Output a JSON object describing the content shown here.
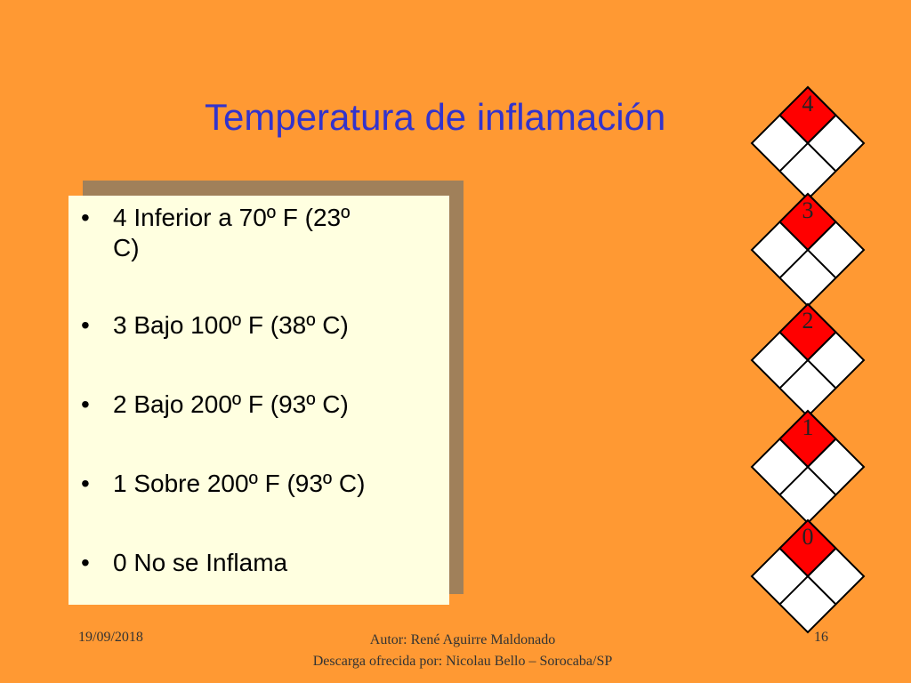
{
  "slide": {
    "title": "Temperatura de inflamación",
    "bullets": [
      {
        "line1": "4 Inferior a 70º F (23º",
        "line2": "C)"
      },
      {
        "line1": "3 Bajo 100º F (38º C)",
        "line2": ""
      },
      {
        "line1": "2 Bajo 200º F (93º C)",
        "line2": ""
      },
      {
        "line1": "1 Sobre 200º F (93º C)",
        "line2": ""
      },
      {
        "line1": "0 No se Inflama",
        "line2": ""
      }
    ],
    "bullet_char": "•"
  },
  "hazard_diamonds": [
    {
      "number": "4",
      "icon": "nfpa-diamond-icon"
    },
    {
      "number": "3",
      "icon": "nfpa-diamond-icon"
    },
    {
      "number": "2",
      "icon": "nfpa-diamond-icon"
    },
    {
      "number": "1",
      "icon": "nfpa-diamond-icon"
    },
    {
      "number": "0",
      "icon": "nfpa-diamond-icon"
    }
  ],
  "footer": {
    "date": "19/09/2018",
    "author_line1": "Autor: René Aguirre Maldonado",
    "author_line2": "Descarga ofrecida por: Nicolau Bello – Sorocaba/SP",
    "page_number": "16"
  },
  "colors": {
    "background": "#FF9933",
    "title": "#3333CC",
    "box_front": "#FFFFE0",
    "box_shadow": "#A0805A",
    "diamond_red": "#FF0000"
  }
}
